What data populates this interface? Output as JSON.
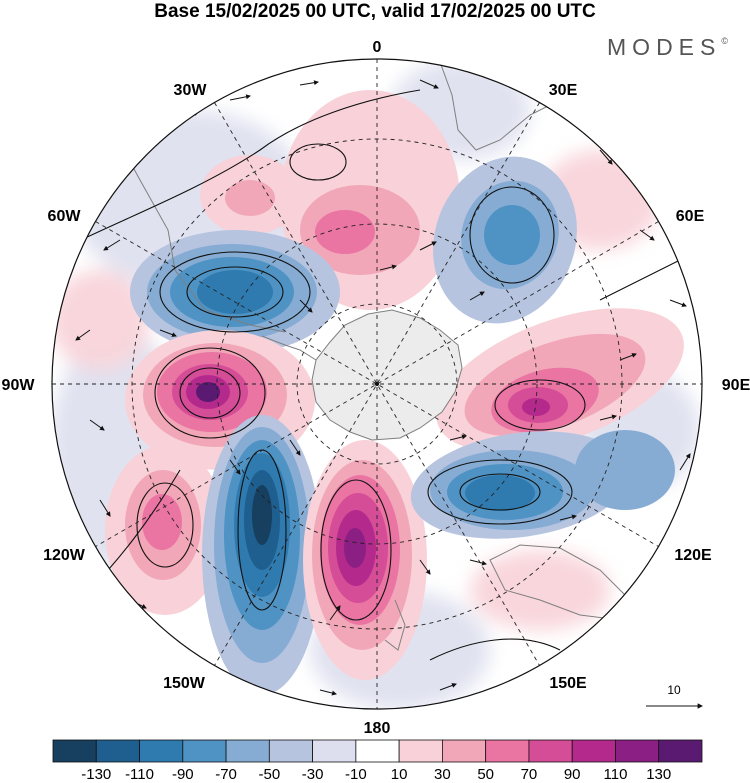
{
  "title": "Base 15/02/2025 00 UTC, valid 17/02/2025 00 UTC",
  "brand": "MODES",
  "brand_mark": "©",
  "longitude_labels": {
    "top": "0",
    "top_right": "30E",
    "right_upper": "60E",
    "right": "90E",
    "right_lower": "120E",
    "bottom_right": "150E",
    "bottom": "180",
    "bottom_left": "150W",
    "left_lower": "120W",
    "left": "90W",
    "left_upper": "60W",
    "top_left": "30W"
  },
  "reference_vector": {
    "label": "10"
  },
  "colorbar": {
    "colors": [
      "#173f5f",
      "#1f5f8f",
      "#2f7bb0",
      "#4f93c4",
      "#86acd4",
      "#b6c4e0",
      "#dddfee",
      "#ffffff",
      "#f8d2d8",
      "#f2a7b8",
      "#ea74a2",
      "#d54c97",
      "#b32a8c",
      "#8b1f83",
      "#5b1a72"
    ],
    "tick_labels": [
      "-130",
      "-110",
      "-90",
      "-70",
      "-50",
      "-30",
      "-10",
      "10",
      "30",
      "50",
      "70",
      "90",
      "110",
      "130"
    ]
  },
  "colors": {
    "antarctica": "#ececec",
    "coast": "#7f7f7f",
    "grid": "#222222"
  }
}
